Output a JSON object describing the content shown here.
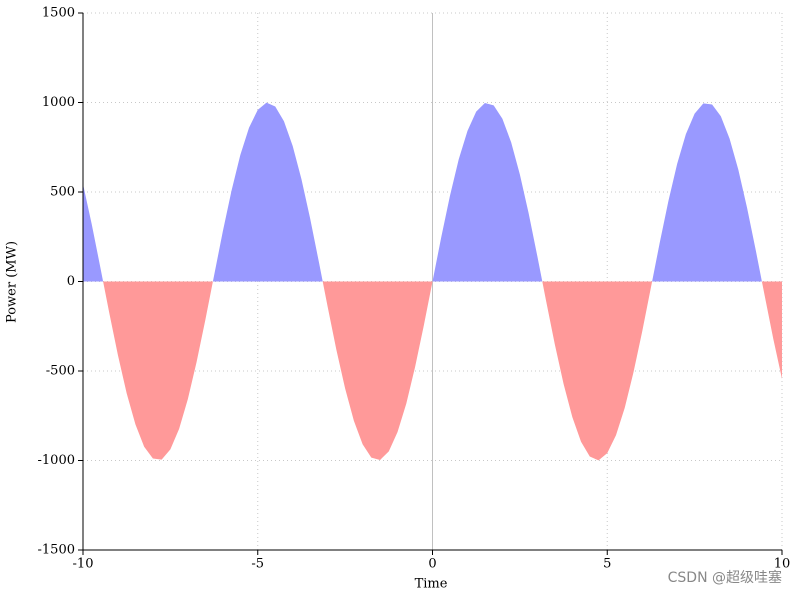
{
  "chart_data": {
    "type": "area",
    "xlabel": "Time",
    "ylabel": "Power (MW)",
    "watermark": "CSDN @超级哇塞",
    "positive_color": "#9999ff",
    "negative_color": "#ff9999",
    "grid": true,
    "xlim": [
      -10,
      10
    ],
    "ylim": [
      -1500,
      1500
    ],
    "xticks": [
      -10,
      -5,
      0,
      5,
      10
    ],
    "yticks": [
      -1500,
      -1000,
      -500,
      0,
      500,
      1000,
      1500
    ],
    "x": [
      -10,
      -9.75,
      -9.5,
      -9.25,
      -9,
      -8.75,
      -8.5,
      -8.25,
      -8,
      -7.75,
      -7.5,
      -7.25,
      -7,
      -6.75,
      -6.5,
      -6.25,
      -6,
      -5.75,
      -5.5,
      -5.25,
      -5,
      -4.75,
      -4.5,
      -4.25,
      -4,
      -3.75,
      -3.5,
      -3.25,
      -3,
      -2.75,
      -2.5,
      -2.25,
      -2,
      -1.75,
      -1.5,
      -1.25,
      -1,
      -0.75,
      -0.5,
      -0.25,
      0,
      0.25,
      0.5,
      0.75,
      1,
      1.25,
      1.5,
      1.75,
      2,
      2.25,
      2.5,
      2.75,
      3,
      3.25,
      3.5,
      3.75,
      4,
      4.25,
      4.5,
      4.75,
      5,
      5.25,
      5.5,
      5.75,
      6,
      6.25,
      6.5,
      6.75,
      7,
      7.25,
      7.5,
      7.75,
      8,
      8.25,
      8.5,
      8.75,
      9,
      9.25,
      9.5,
      9.75,
      10
    ],
    "values": [
      544,
      320,
      75,
      -174,
      -412,
      -625,
      -798,
      -923,
      -989,
      -995,
      -938,
      -823,
      -657,
      -450,
      -215,
      33,
      279,
      508,
      706,
      859,
      959,
      999,
      978,
      895,
      757,
      572,
      351,
      108,
      -141,
      -382,
      -598,
      -778,
      -909,
      -984,
      -997,
      -949,
      -841,
      -682,
      -479,
      -247,
      0,
      247,
      479,
      682,
      841,
      949,
      997,
      984,
      909,
      778,
      598,
      382,
      141,
      -108,
      -351,
      -572,
      -757,
      -895,
      -978,
      -999,
      -959,
      -859,
      -706,
      -508,
      -279,
      -33,
      215,
      450,
      657,
      823,
      938,
      995,
      989,
      923,
      798,
      625,
      412,
      174,
      -75,
      -320,
      -544
    ]
  }
}
